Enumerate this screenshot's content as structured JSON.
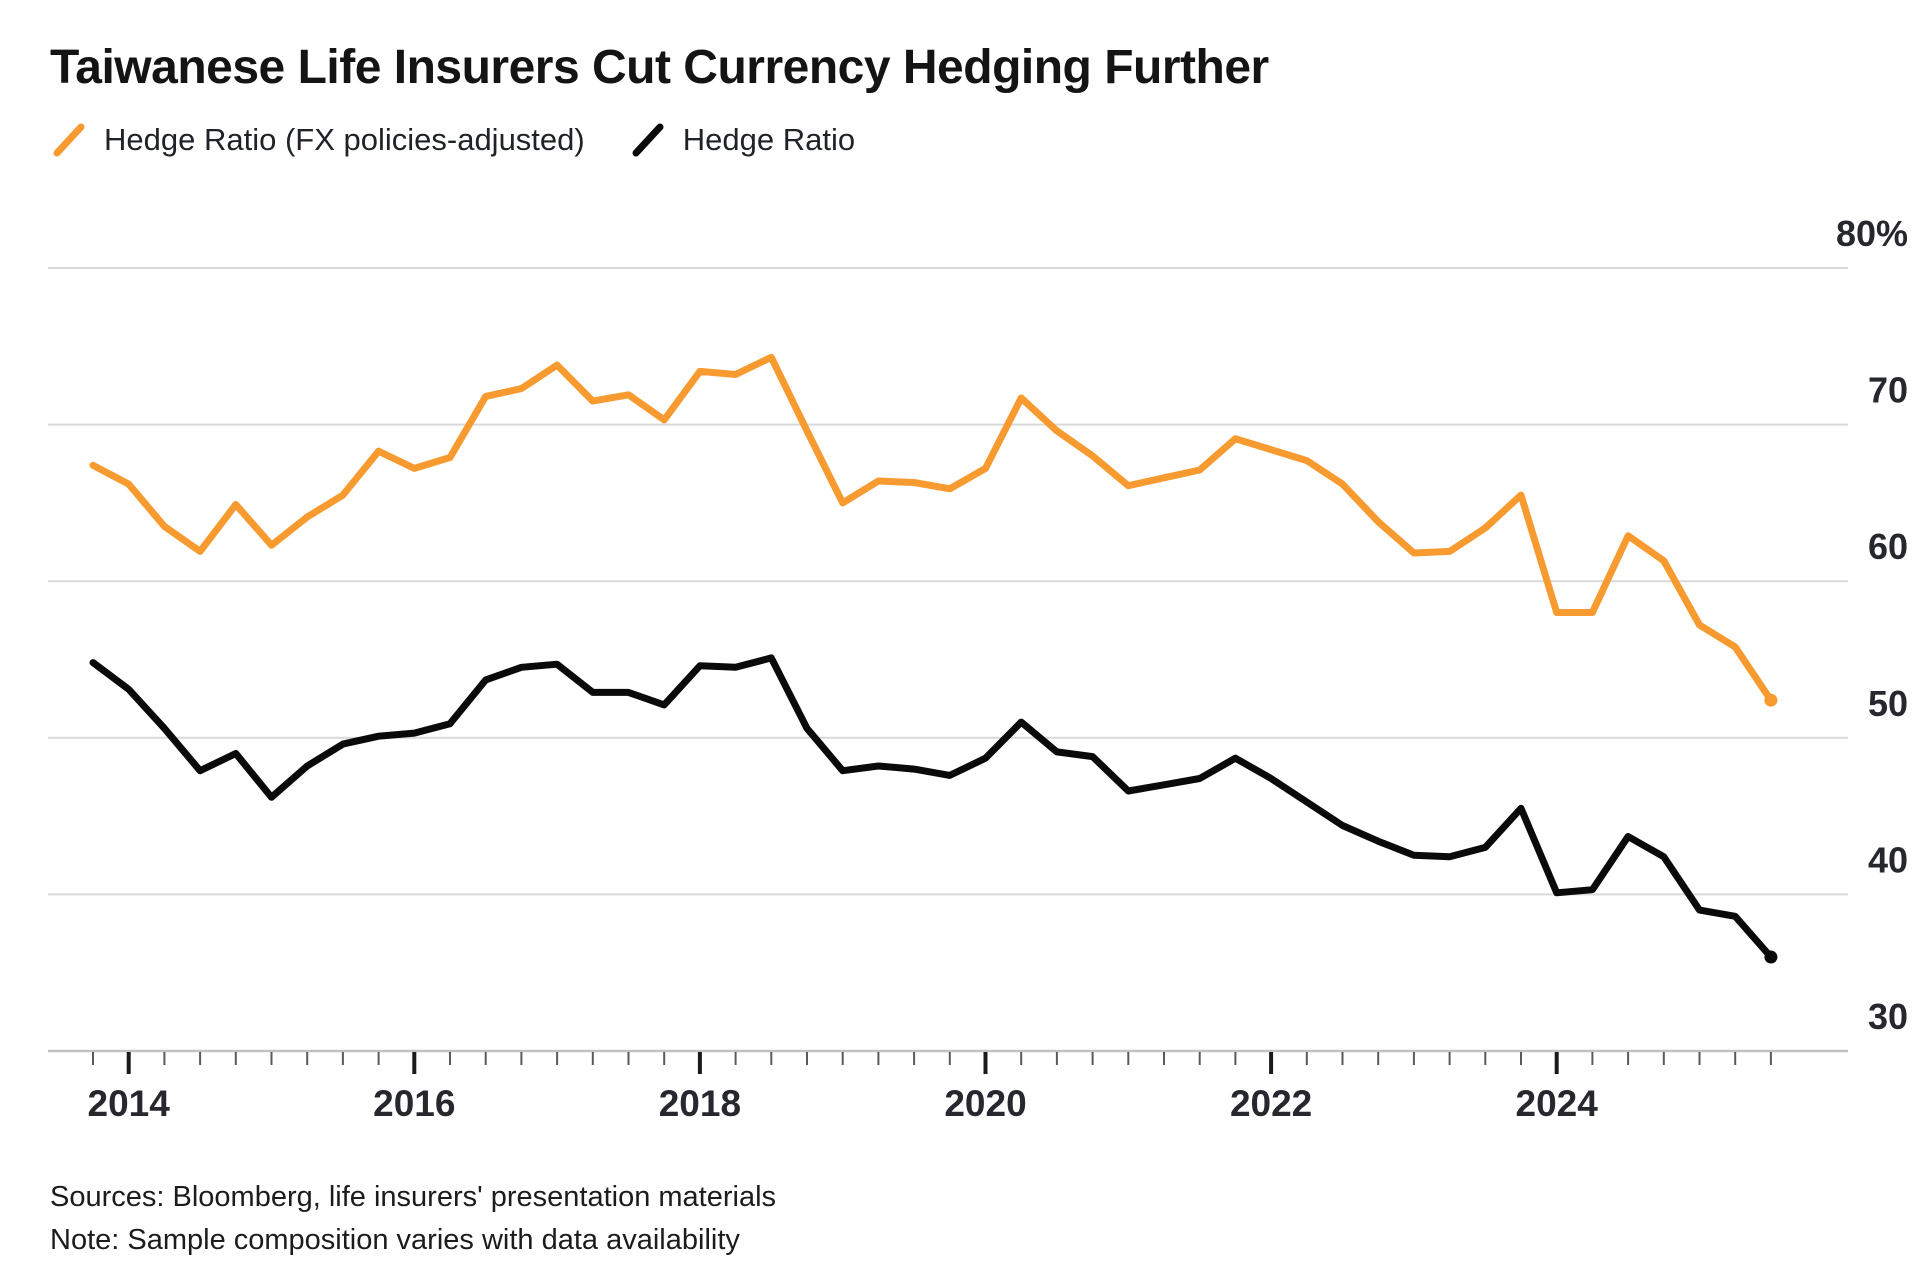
{
  "title": "Taiwanese Life Insurers Cut Currency Hedging Further",
  "legend": [
    {
      "label": "Hedge Ratio (FX policies-adjusted)",
      "color": "#F79B30"
    },
    {
      "label": "Hedge Ratio",
      "color": "#0A0A0A"
    }
  ],
  "footer": {
    "sources": "Sources: Bloomberg, life insurers' presentation materials",
    "note": "Note: Sample composition varies with data availability"
  },
  "colors": {
    "grid": "#D9D9D9",
    "axis_line": "#C2C2C2",
    "minor_tick": "#5A5A5A",
    "major_tick": "#1A1A1A",
    "tick_label": "#26282D",
    "orange": "#F79B30",
    "black": "#0A0A0A"
  },
  "chart_data": {
    "type": "line",
    "title": "Taiwanese Life Insurers Cut Currency Hedging Further",
    "ylabel": "",
    "xlabel": "",
    "grid": true,
    "legend_position": "top",
    "ylim": [
      30,
      80
    ],
    "yticks": [
      80,
      70,
      60,
      50,
      40,
      30
    ],
    "ytick_labels": [
      "80%",
      "70",
      "60",
      "50",
      "40",
      "30"
    ],
    "x_labels": [
      "2013Q4",
      "2014Q1",
      "2014Q2",
      "2014Q3",
      "2014Q4",
      "2015Q1",
      "2015Q2",
      "2015Q3",
      "2015Q4",
      "2016Q1",
      "2016Q2",
      "2016Q3",
      "2016Q4",
      "2017Q1",
      "2017Q2",
      "2017Q3",
      "2017Q4",
      "2018Q1",
      "2018Q2",
      "2018Q3",
      "2018Q4",
      "2019Q1",
      "2019Q2",
      "2019Q3",
      "2019Q4",
      "2020Q1",
      "2020Q2",
      "2020Q3",
      "2020Q4",
      "2021Q1",
      "2021Q2",
      "2021Q3",
      "2021Q4",
      "2022Q1",
      "2022Q2",
      "2022Q3",
      "2022Q4",
      "2023Q1",
      "2023Q2",
      "2023Q3",
      "2023Q4",
      "2024Q1",
      "2024Q2",
      "2024Q3",
      "2024Q4",
      "2025Q1",
      "2025Q2",
      "2025Q3"
    ],
    "x_major_ticks": [
      {
        "index": 1,
        "label": "2014"
      },
      {
        "index": 9,
        "label": "2016"
      },
      {
        "index": 17,
        "label": "2018"
      },
      {
        "index": 25,
        "label": "2020"
      },
      {
        "index": 33,
        "label": "2022"
      },
      {
        "index": 41,
        "label": "2024"
      }
    ],
    "series": [
      {
        "name": "Hedge Ratio (FX policies-adjusted)",
        "color": "#F79B30",
        "values": [
          67.4,
          66.2,
          63.5,
          61.9,
          64.9,
          62.3,
          64.1,
          65.5,
          68.3,
          67.2,
          67.9,
          71.8,
          72.3,
          73.8,
          71.5,
          71.9,
          70.3,
          73.4,
          73.2,
          74.3,
          69.6,
          65.0,
          66.4,
          66.3,
          65.9,
          67.2,
          71.7,
          69.6,
          68.0,
          66.1,
          66.6,
          67.1,
          69.1,
          68.4,
          67.7,
          66.2,
          63.8,
          61.8,
          61.9,
          63.4,
          65.5,
          58.0,
          58.0,
          62.9,
          61.3,
          57.2,
          55.8,
          52.4
        ]
      },
      {
        "name": "Hedge Ratio",
        "color": "#0A0A0A",
        "values": [
          54.8,
          53.1,
          50.6,
          47.9,
          49.0,
          46.2,
          48.2,
          49.6,
          50.1,
          50.3,
          50.9,
          53.7,
          54.5,
          54.7,
          52.9,
          52.9,
          52.1,
          54.6,
          54.5,
          55.1,
          50.6,
          47.9,
          48.2,
          48.0,
          47.6,
          48.7,
          51.0,
          49.1,
          48.8,
          46.6,
          47.0,
          47.4,
          48.7,
          47.4,
          45.9,
          44.4,
          43.4,
          42.5,
          42.4,
          43.0,
          45.5,
          40.1,
          40.3,
          43.7,
          42.4,
          39.0,
          38.6,
          36.0
        ]
      }
    ]
  }
}
